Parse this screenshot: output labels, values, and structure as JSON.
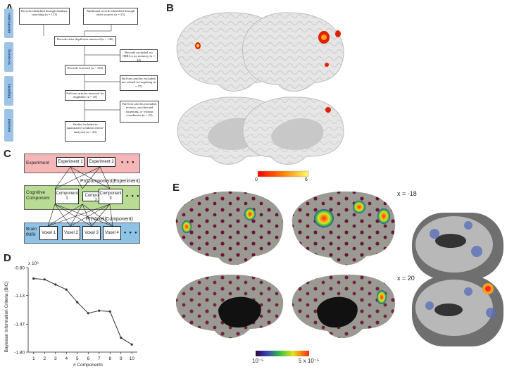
{
  "panels": {
    "A": "A",
    "B": "B",
    "C": "C",
    "D": "D",
    "E": "E"
  },
  "prisma": {
    "stages": [
      "Identification",
      "Screening",
      "Eligibility",
      "Included"
    ],
    "box_records_db": "Records identified through database searching (n = 123)",
    "box_records_other": "Additional records identified through other sources (n = 23)",
    "box_after_dupes": "Records after duplicates removed (n = 146)",
    "box_excluded_1": "Records excluded, no fMRI or no memory (n = 44)",
    "box_screened": "Records screened (n = 102)",
    "box_excluded_2": "Full-text articles excluded, not related to forgetting (n = 57)",
    "box_fulltext": "Full-text articles assessed for eligibility (n = 45)",
    "box_excluded_3": "Full-text articles excluded, reviews, not directed forgetting, or without coordinates (n = 22)",
    "box_included": "Studies included in quantitative synthesis (meta-analysis) (n = 23)"
  },
  "colorbar_B": {
    "min": "0",
    "max": "6"
  },
  "model": {
    "band_experiment": "Experiment",
    "band_cognitive": "Cognitive Component",
    "band_brain": "Brain fMRI",
    "experiments": [
      "Experiment 1",
      "Experiment 2"
    ],
    "components": [
      "Component 1",
      "Component 2",
      "Component 3"
    ],
    "voxels": [
      "Voxel 1",
      "Voxel 2",
      "Voxel 3",
      "Voxel 4"
    ],
    "ellipsis": "• • •",
    "pr_comp_exp": "Pr(Component|Experiment)",
    "pr_vox_comp": "Pr(Voxel|Component)"
  },
  "chart_data": {
    "type": "line",
    "title": "",
    "xlabel": "# Components",
    "ylabel": "Bayesian Information Criteria (BIC)",
    "yscale_label": "x 10⁶",
    "x": [
      1,
      2,
      3,
      4,
      5,
      6,
      7,
      8,
      9,
      10
    ],
    "y": [
      -0.93,
      -0.94,
      -1.0,
      -1.06,
      -1.21,
      -1.34,
      -1.31,
      -1.32,
      -1.63,
      -1.71
    ],
    "xticks": [
      "1",
      "2",
      "3",
      "4",
      "5",
      "6",
      "7",
      "8",
      "9",
      "10"
    ],
    "yticks": [
      "-0.80",
      "-1.13",
      "-1.47",
      "-1.80"
    ],
    "ylim": [
      -1.8,
      -0.8
    ],
    "xlim": [
      0.5,
      10.5
    ],
    "grid": false,
    "color": "#333333"
  },
  "panel_E": {
    "slice_top_label": "x = -18",
    "slice_bottom_label": "x = 20",
    "colorbar_min": "10⁻⁵",
    "colorbar_max": "5 x 10⁻⁵"
  },
  "colors": {
    "experiment_band": "#f4b6b6",
    "cognitive_band": "#b9dc95",
    "brain_band": "#8ec3e6",
    "stage_blue": "#9dc3e6",
    "brain_grey": "#d9d9d9",
    "brain_dark_grey": "#9a9a92"
  }
}
